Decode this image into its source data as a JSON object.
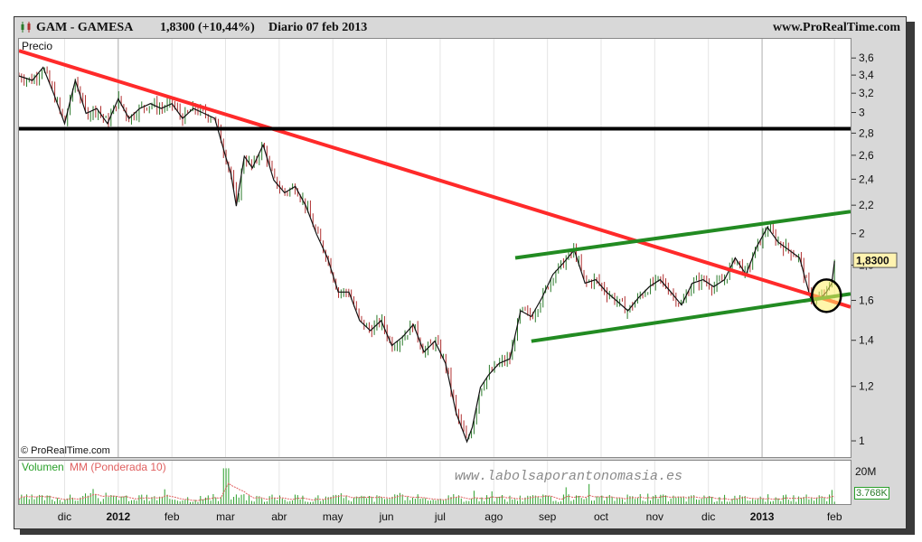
{
  "header": {
    "ticker_title": "GAM - GAMESA",
    "price_change": "1,8300 (+10,44%)",
    "period_date": "Diario  07 feb 2013",
    "source": "www.ProRealTime.com"
  },
  "panels": {
    "price_label": "Precio",
    "copyright": "© ProRealTime.com",
    "volume_label": "Volumen",
    "ma_label": "MM (Ponderada 10)",
    "watermark": "www.labolsaporantonomasia.es"
  },
  "colors": {
    "up_candle": "#2a7a2a",
    "down_candle": "#b03030",
    "resistance_line": "#ff2a2a",
    "horizontal_line": "#000000",
    "channel_lines": "#228b22",
    "volume_bars": "#2aa02a",
    "moving_average": "#e06060"
  },
  "chart_data": {
    "type": "line",
    "title": "",
    "ylabel": "Precio",
    "yscale": "log",
    "ylim": [
      0.95,
      3.85
    ],
    "yticks": [
      "3,6",
      "3,4",
      "3,2",
      "3",
      "2,8",
      "2,6",
      "2,4",
      "2,2",
      "2",
      "1,8",
      "1,6",
      "1,4",
      "1,2",
      "1"
    ],
    "ytick_values": [
      3.6,
      3.4,
      3.2,
      3.0,
      2.8,
      2.6,
      2.4,
      2.2,
      2.0,
      1.8,
      1.6,
      1.4,
      1.2,
      1.0
    ],
    "last_price_label": "1,8300",
    "last_price": 1.83,
    "x_months": [
      "dic",
      "2012",
      "feb",
      "mar",
      "abr",
      "may",
      "jun",
      "jul",
      "ago",
      "sep",
      "oct",
      "nov",
      "dic",
      "2013",
      "feb"
    ],
    "x_month_index": [
      0,
      1,
      2,
      3,
      4,
      5,
      6,
      7,
      8,
      9,
      10,
      11,
      12,
      13,
      14.35
    ],
    "x_range": [
      -0.85,
      14.65
    ],
    "series": [
      {
        "x": [
          -0.85,
          -0.6,
          -0.4,
          -0.2,
          0.0,
          0.2,
          0.4,
          0.6,
          0.8,
          1.0,
          1.2,
          1.4,
          1.6,
          1.8,
          2.0,
          2.2,
          2.4,
          2.6,
          2.8,
          3.0,
          3.1,
          3.2,
          3.35,
          3.5,
          3.7,
          3.9,
          4.1,
          4.3,
          4.5,
          4.7,
          4.9,
          5.1,
          5.3,
          5.5,
          5.7,
          5.9,
          6.1,
          6.3,
          6.5,
          6.7,
          6.9,
          7.1,
          7.3,
          7.5,
          7.6,
          7.75,
          7.9,
          8.1,
          8.3,
          8.5,
          8.7,
          8.9,
          9.1,
          9.3,
          9.5,
          9.7,
          9.9,
          10.1,
          10.3,
          10.5,
          10.7,
          10.9,
          11.1,
          11.3,
          11.5,
          11.7,
          11.9,
          12.1,
          12.3,
          12.5,
          12.7,
          12.9,
          13.1,
          13.3,
          13.5,
          13.7,
          13.9,
          14.1,
          14.2,
          14.3,
          14.35
        ],
        "y": [
          3.4,
          3.35,
          3.5,
          3.2,
          2.9,
          3.35,
          3.0,
          3.05,
          2.9,
          3.15,
          2.95,
          3.05,
          3.1,
          3.05,
          3.1,
          2.95,
          3.05,
          3.0,
          2.95,
          2.6,
          2.45,
          2.2,
          2.6,
          2.5,
          2.7,
          2.4,
          2.3,
          2.35,
          2.2,
          2.0,
          1.85,
          1.65,
          1.65,
          1.5,
          1.45,
          1.5,
          1.38,
          1.42,
          1.48,
          1.35,
          1.4,
          1.3,
          1.1,
          1.0,
          1.05,
          1.2,
          1.25,
          1.3,
          1.32,
          1.55,
          1.52,
          1.62,
          1.75,
          1.82,
          1.9,
          1.7,
          1.72,
          1.65,
          1.6,
          1.55,
          1.62,
          1.68,
          1.72,
          1.65,
          1.58,
          1.7,
          1.72,
          1.68,
          1.72,
          1.85,
          1.75,
          1.92,
          2.05,
          1.95,
          1.9,
          1.85,
          1.62,
          1.62,
          1.65,
          1.7,
          1.83
        ]
      }
    ],
    "trendlines": [
      {
        "name": "",
        "color": "#ff2a2a",
        "points": [
          [
            -0.85,
            3.7
          ],
          [
            14.65,
            1.57
          ]
        ]
      },
      {
        "name": "",
        "color": "#000000",
        "points": [
          [
            -0.85,
            2.85
          ],
          [
            14.65,
            2.85
          ]
        ]
      },
      {
        "name": "",
        "color": "#228b22",
        "points": [
          [
            8.4,
            1.85
          ],
          [
            14.65,
            2.16
          ]
        ]
      },
      {
        "name": "",
        "color": "#228b22",
        "points": [
          [
            8.7,
            1.4
          ],
          [
            14.65,
            1.64
          ]
        ]
      }
    ],
    "highlight_circle": {
      "x": 14.2,
      "y": 1.63
    },
    "volume": {
      "axis_label": "20M",
      "last_label": "3.768K",
      "max": 20
    }
  }
}
